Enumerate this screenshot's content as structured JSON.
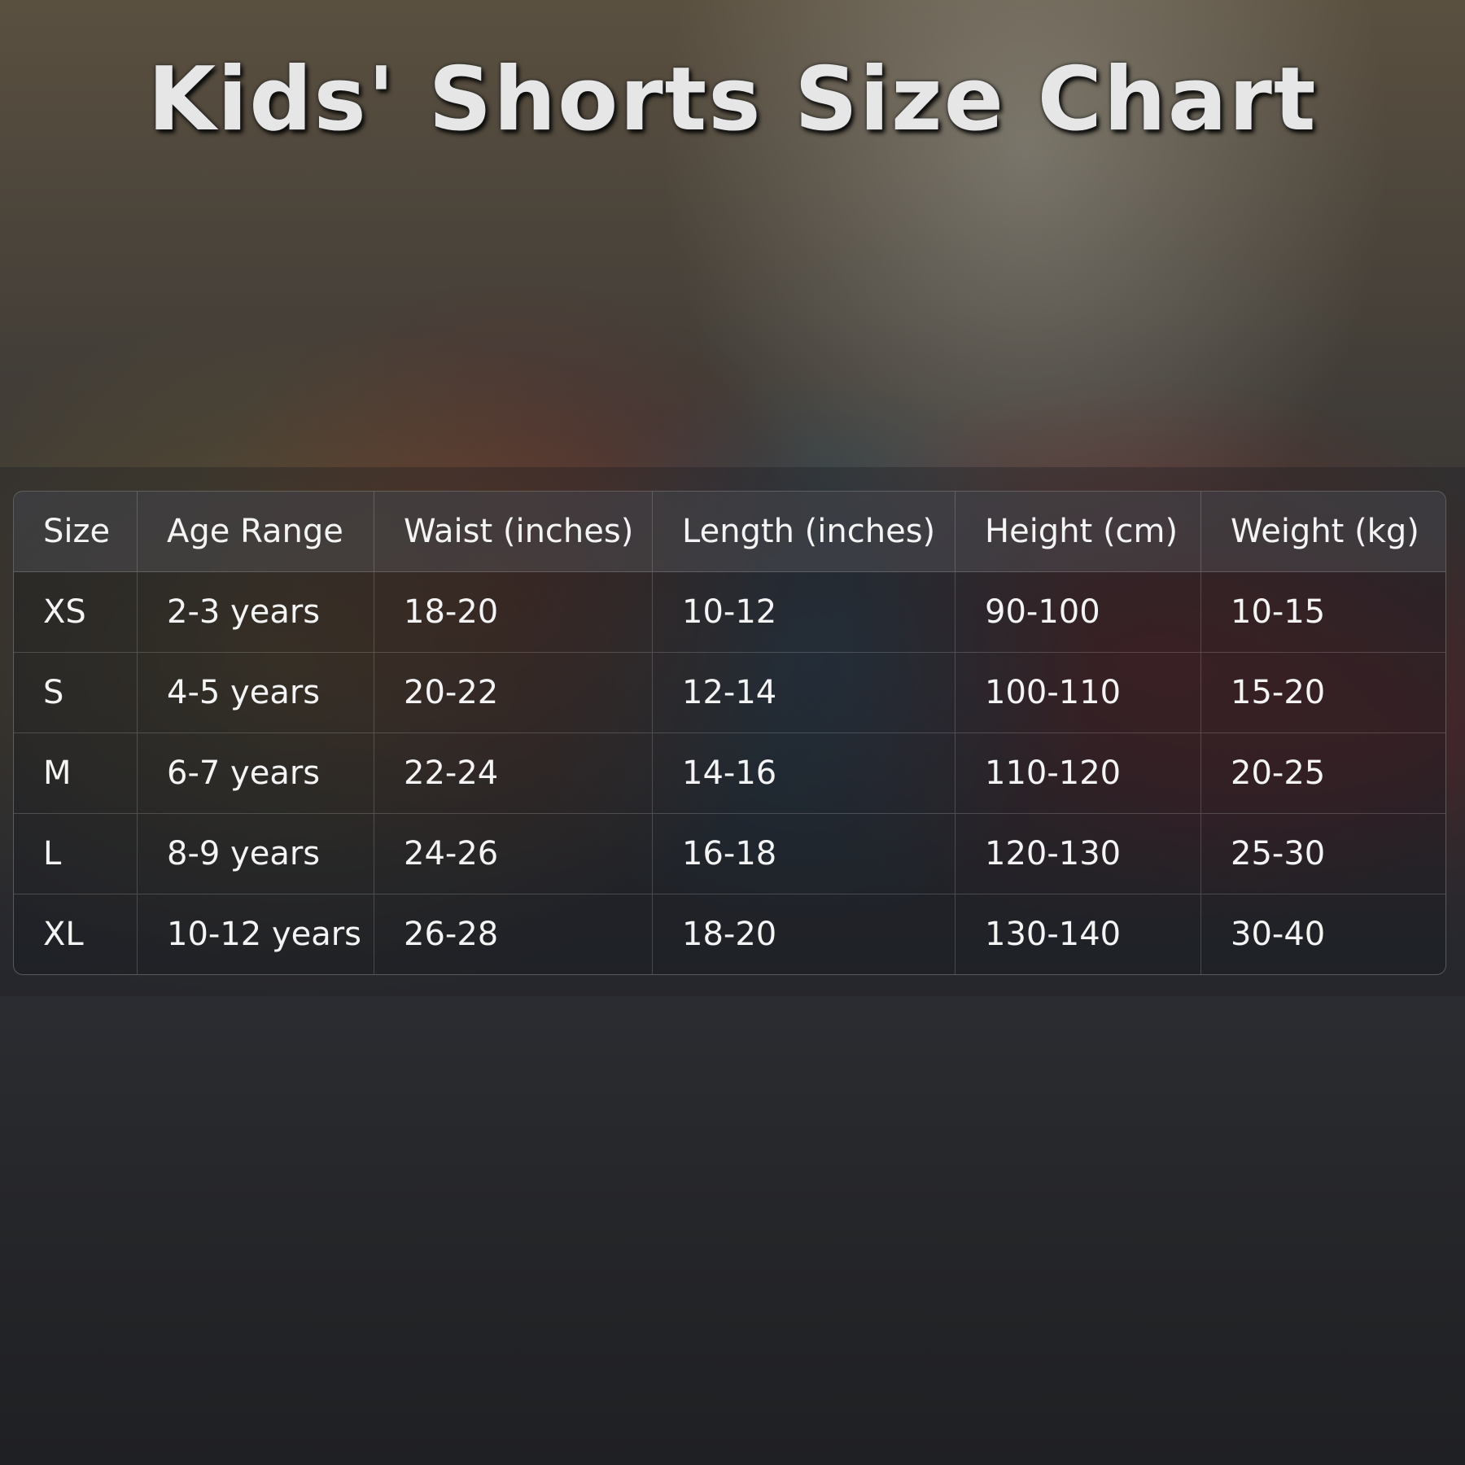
{
  "title": "Kids' Shorts Size Chart",
  "table": {
    "headers": [
      "Size",
      "Age Range",
      "Waist (inches)",
      "Length (inches)",
      "Height (cm)",
      "Weight (kg)"
    ],
    "rows": [
      [
        "XS",
        "2-3 years",
        "18-20",
        "10-12",
        "90-100",
        "10-15"
      ],
      [
        "S",
        "4-5 years",
        "20-22",
        "12-14",
        "100-110",
        "15-20"
      ],
      [
        "M",
        "6-7 years",
        "22-24",
        "14-16",
        "110-120",
        "20-25"
      ],
      [
        "L",
        "8-9 years",
        "24-26",
        "16-18",
        "120-130",
        "25-30"
      ],
      [
        "XL",
        "10-12 years",
        "26-28",
        "18-20",
        "130-140",
        "30-40"
      ]
    ]
  }
}
